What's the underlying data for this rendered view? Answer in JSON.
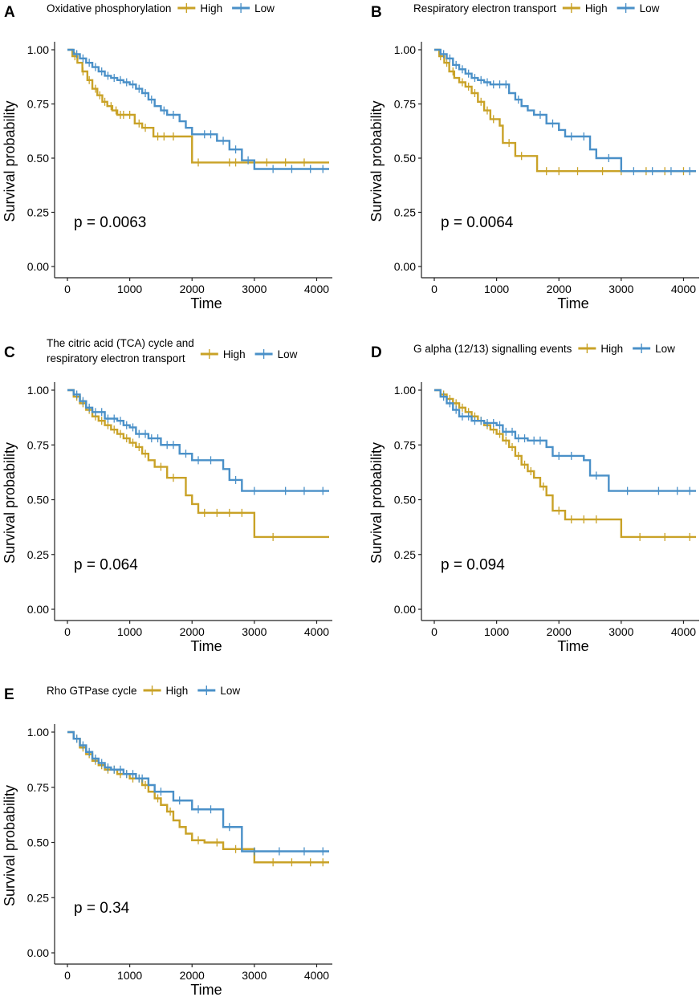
{
  "colors": {
    "high": "#C9A227",
    "low": "#4A90C8",
    "axis": "#222222"
  },
  "chart_data": [
    {
      "id": "A",
      "panel_label": "A",
      "type": "line",
      "step": true,
      "legend_title_lines": [
        "Oxidative phosphorylation"
      ],
      "legend_entries": [
        "High",
        "Low"
      ],
      "xlabel": "Time",
      "ylabel": "Survival probability",
      "xlim": [
        0,
        4200
      ],
      "ylim": [
        0,
        1
      ],
      "x_ticks": [
        0,
        1000,
        2000,
        3000,
        4000
      ],
      "x_tick_labels": [
        "0",
        "1000",
        "2000",
        "3000",
        "4000"
      ],
      "y_ticks": [
        0,
        0.25,
        0.5,
        0.75,
        1
      ],
      "y_tick_labels": [
        "0.00",
        "0.25",
        "0.50",
        "0.75",
        "1.00"
      ],
      "p_value": "p = 0.0063",
      "series": [
        {
          "name": "High",
          "color_key": "high",
          "x": [
            0,
            80,
            160,
            240,
            320,
            400,
            480,
            560,
            640,
            720,
            800,
            950,
            1080,
            1200,
            1380,
            2000,
            4200
          ],
          "y": [
            1.0,
            0.97,
            0.94,
            0.9,
            0.86,
            0.82,
            0.79,
            0.76,
            0.74,
            0.72,
            0.7,
            0.7,
            0.66,
            0.64,
            0.6,
            0.48,
            0.48
          ],
          "censor_x": [
            120,
            250,
            350,
            450,
            520,
            600,
            700,
            780,
            850,
            900,
            1000,
            1150,
            1250,
            1450,
            1550,
            1700,
            2100,
            2600,
            2700,
            3200,
            3500,
            3800
          ]
        },
        {
          "name": "Low",
          "color_key": "low",
          "x": [
            0,
            100,
            200,
            300,
            400,
            500,
            600,
            700,
            800,
            900,
            1000,
            1100,
            1200,
            1300,
            1400,
            1500,
            1600,
            1800,
            1900,
            2000,
            2400,
            2600,
            2800,
            3000,
            4200
          ],
          "y": [
            1.0,
            0.98,
            0.96,
            0.94,
            0.92,
            0.9,
            0.88,
            0.87,
            0.86,
            0.85,
            0.84,
            0.82,
            0.8,
            0.77,
            0.74,
            0.72,
            0.7,
            0.67,
            0.64,
            0.61,
            0.58,
            0.54,
            0.49,
            0.45,
            0.45
          ],
          "censor_x": [
            150,
            250,
            350,
            450,
            550,
            650,
            750,
            850,
            950,
            1050,
            1150,
            1250,
            1350,
            1550,
            1700,
            2200,
            2300,
            2500,
            2700,
            2900,
            3300,
            3600,
            3900,
            4100
          ]
        }
      ]
    },
    {
      "id": "B",
      "panel_label": "B",
      "type": "line",
      "step": true,
      "legend_title_lines": [
        "Respiratory electron transport"
      ],
      "legend_entries": [
        "High",
        "Low"
      ],
      "xlabel": "Time",
      "ylabel": "Survival probability",
      "xlim": [
        0,
        4200
      ],
      "ylim": [
        0,
        1
      ],
      "x_ticks": [
        0,
        1000,
        2000,
        3000,
        4000
      ],
      "x_tick_labels": [
        "0",
        "1000",
        "2000",
        "3000",
        "4000"
      ],
      "y_ticks": [
        0,
        0.25,
        0.5,
        0.75,
        1
      ],
      "y_tick_labels": [
        "0.00",
        "0.25",
        "0.50",
        "0.75",
        "1.00"
      ],
      "p_value": "p = 0.0064",
      "series": [
        {
          "name": "High",
          "color_key": "high",
          "x": [
            0,
            80,
            160,
            240,
            320,
            400,
            500,
            600,
            700,
            800,
            900,
            1050,
            1100,
            1300,
            1650,
            4200
          ],
          "y": [
            1.0,
            0.97,
            0.94,
            0.9,
            0.87,
            0.85,
            0.83,
            0.8,
            0.76,
            0.72,
            0.68,
            0.65,
            0.57,
            0.51,
            0.44,
            0.44
          ],
          "censor_x": [
            100,
            200,
            300,
            450,
            550,
            650,
            750,
            850,
            950,
            1200,
            1400,
            1800,
            2000,
            2300,
            2700,
            3000,
            3400,
            3700,
            4000
          ]
        },
        {
          "name": "Low",
          "color_key": "low",
          "x": [
            0,
            100,
            200,
            300,
            400,
            500,
            600,
            700,
            800,
            900,
            1100,
            1200,
            1300,
            1400,
            1500,
            1600,
            1800,
            2000,
            2100,
            2500,
            2600,
            3000,
            4200
          ],
          "y": [
            1.0,
            0.98,
            0.96,
            0.93,
            0.91,
            0.89,
            0.87,
            0.86,
            0.85,
            0.84,
            0.84,
            0.8,
            0.77,
            0.74,
            0.72,
            0.7,
            0.66,
            0.63,
            0.6,
            0.54,
            0.5,
            0.44,
            0.44
          ],
          "censor_x": [
            150,
            250,
            350,
            450,
            550,
            650,
            750,
            850,
            950,
            1050,
            1150,
            1350,
            1700,
            1900,
            2200,
            2400,
            2800,
            3200,
            3500,
            3800,
            4100
          ]
        }
      ]
    },
    {
      "id": "C",
      "panel_label": "C",
      "type": "line",
      "step": true,
      "legend_title_lines": [
        "The citric acid (TCA) cycle and",
        "respiratory electron transport"
      ],
      "legend_entries": [
        "High",
        "Low"
      ],
      "xlabel": "Time",
      "ylabel": "Survival probability",
      "xlim": [
        0,
        4200
      ],
      "ylim": [
        0,
        1
      ],
      "x_ticks": [
        0,
        1000,
        2000,
        3000,
        4000
      ],
      "x_tick_labels": [
        "0",
        "1000",
        "2000",
        "3000",
        "4000"
      ],
      "y_ticks": [
        0,
        0.25,
        0.5,
        0.75,
        1
      ],
      "y_tick_labels": [
        "0.00",
        "0.25",
        "0.50",
        "0.75",
        "1.00"
      ],
      "p_value": "p = 0.064",
      "series": [
        {
          "name": "High",
          "color_key": "high",
          "x": [
            0,
            100,
            200,
            300,
            400,
            500,
            600,
            700,
            800,
            900,
            1000,
            1100,
            1200,
            1300,
            1400,
            1600,
            1900,
            2000,
            2100,
            3000,
            4200
          ],
          "y": [
            1.0,
            0.97,
            0.94,
            0.91,
            0.88,
            0.86,
            0.84,
            0.82,
            0.8,
            0.78,
            0.76,
            0.74,
            0.71,
            0.68,
            0.65,
            0.6,
            0.52,
            0.48,
            0.44,
            0.33,
            0.33
          ],
          "censor_x": [
            150,
            250,
            350,
            450,
            550,
            650,
            750,
            850,
            950,
            1050,
            1150,
            1250,
            1500,
            1700,
            2200,
            2400,
            2600,
            2800,
            3300
          ]
        },
        {
          "name": "Low",
          "color_key": "low",
          "x": [
            0,
            100,
            200,
            300,
            400,
            600,
            800,
            900,
            1000,
            1100,
            1300,
            1500,
            1800,
            2000,
            2500,
            2600,
            2800,
            4200
          ],
          "y": [
            1.0,
            0.98,
            0.95,
            0.92,
            0.9,
            0.87,
            0.86,
            0.84,
            0.83,
            0.8,
            0.78,
            0.75,
            0.71,
            0.68,
            0.64,
            0.59,
            0.54,
            0.54
          ],
          "censor_x": [
            150,
            250,
            350,
            450,
            550,
            650,
            750,
            850,
            950,
            1050,
            1150,
            1250,
            1350,
            1450,
            1600,
            1700,
            1900,
            2100,
            2300,
            2700,
            3000,
            3500,
            3800,
            4100
          ]
        }
      ]
    },
    {
      "id": "D",
      "panel_label": "D",
      "type": "line",
      "step": true,
      "legend_title_lines": [
        "G alpha (12/13) signalling events"
      ],
      "legend_entries": [
        "High",
        "Low"
      ],
      "xlabel": "Time",
      "ylabel": "Survival probability",
      "xlim": [
        0,
        4200
      ],
      "ylim": [
        0,
        1
      ],
      "x_ticks": [
        0,
        1000,
        2000,
        3000,
        4000
      ],
      "x_tick_labels": [
        "0",
        "1000",
        "2000",
        "3000",
        "4000"
      ],
      "y_ticks": [
        0,
        0.25,
        0.5,
        0.75,
        1
      ],
      "y_tick_labels": [
        "0.00",
        "0.25",
        "0.50",
        "0.75",
        "1.00"
      ],
      "p_value": "p = 0.094",
      "series": [
        {
          "name": "High",
          "color_key": "high",
          "x": [
            0,
            100,
            200,
            300,
            400,
            500,
            600,
            700,
            800,
            900,
            1000,
            1100,
            1200,
            1300,
            1400,
            1500,
            1600,
            1700,
            1800,
            1900,
            2100,
            2800,
            3000,
            4200
          ],
          "y": [
            1.0,
            0.98,
            0.96,
            0.94,
            0.92,
            0.9,
            0.88,
            0.86,
            0.84,
            0.82,
            0.8,
            0.77,
            0.74,
            0.7,
            0.66,
            0.63,
            0.6,
            0.56,
            0.52,
            0.45,
            0.41,
            0.41,
            0.33,
            0.33
          ],
          "censor_x": [
            150,
            250,
            350,
            450,
            550,
            650,
            750,
            850,
            950,
            1050,
            1150,
            1250,
            1350,
            1450,
            1550,
            1750,
            2000,
            2200,
            2400,
            2600,
            3300,
            3700,
            4100
          ]
        },
        {
          "name": "Low",
          "color_key": "low",
          "x": [
            0,
            100,
            200,
            300,
            400,
            600,
            800,
            1000,
            1100,
            1300,
            1500,
            1800,
            1900,
            2400,
            2500,
            2800,
            4200
          ],
          "y": [
            1.0,
            0.97,
            0.94,
            0.91,
            0.88,
            0.86,
            0.85,
            0.84,
            0.81,
            0.78,
            0.77,
            0.74,
            0.7,
            0.68,
            0.61,
            0.54,
            0.54
          ],
          "censor_x": [
            150,
            250,
            350,
            450,
            550,
            650,
            750,
            850,
            950,
            1050,
            1150,
            1250,
            1350,
            1450,
            1600,
            1700,
            2000,
            2200,
            2600,
            3100,
            3600,
            3900,
            4100
          ]
        }
      ]
    },
    {
      "id": "E",
      "panel_label": "E",
      "type": "line",
      "step": true,
      "legend_title_lines": [
        "Rho GTPase cycle"
      ],
      "legend_entries": [
        "High",
        "Low"
      ],
      "xlabel": "Time",
      "ylabel": "Survival probability",
      "xlim": [
        0,
        4200
      ],
      "ylim": [
        0,
        1
      ],
      "x_ticks": [
        0,
        1000,
        2000,
        3000,
        4000
      ],
      "x_tick_labels": [
        "0",
        "1000",
        "2000",
        "3000",
        "4000"
      ],
      "y_ticks": [
        0,
        0.25,
        0.5,
        0.75,
        1
      ],
      "y_tick_labels": [
        "0.00",
        "0.25",
        "0.50",
        "0.75",
        "1.00"
      ],
      "p_value": "p = 0.34",
      "series": [
        {
          "name": "High",
          "color_key": "high",
          "x": [
            0,
            100,
            200,
            300,
            400,
            500,
            600,
            800,
            1000,
            1200,
            1300,
            1400,
            1500,
            1600,
            1700,
            1800,
            1900,
            2000,
            2200,
            2500,
            2900,
            3000,
            4200
          ],
          "y": [
            1.0,
            0.97,
            0.93,
            0.9,
            0.87,
            0.85,
            0.83,
            0.81,
            0.79,
            0.76,
            0.73,
            0.7,
            0.67,
            0.64,
            0.6,
            0.57,
            0.54,
            0.51,
            0.5,
            0.47,
            0.47,
            0.41,
            0.41
          ],
          "censor_x": [
            150,
            250,
            350,
            450,
            550,
            650,
            750,
            850,
            950,
            1050,
            1150,
            1250,
            1450,
            1650,
            2100,
            2400,
            2700,
            3300,
            3600,
            3900,
            4100
          ]
        },
        {
          "name": "Low",
          "color_key": "low",
          "x": [
            0,
            100,
            200,
            300,
            400,
            500,
            600,
            700,
            900,
            1100,
            1300,
            1400,
            1700,
            2000,
            2500,
            2800,
            4200
          ],
          "y": [
            1.0,
            0.97,
            0.94,
            0.91,
            0.88,
            0.86,
            0.84,
            0.83,
            0.81,
            0.79,
            0.76,
            0.73,
            0.69,
            0.65,
            0.57,
            0.46,
            0.46
          ],
          "censor_x": [
            150,
            250,
            350,
            450,
            550,
            650,
            750,
            850,
            950,
            1050,
            1150,
            1200,
            1500,
            1800,
            2100,
            2300,
            2600,
            3000,
            3400,
            3800,
            4100
          ]
        }
      ]
    }
  ]
}
